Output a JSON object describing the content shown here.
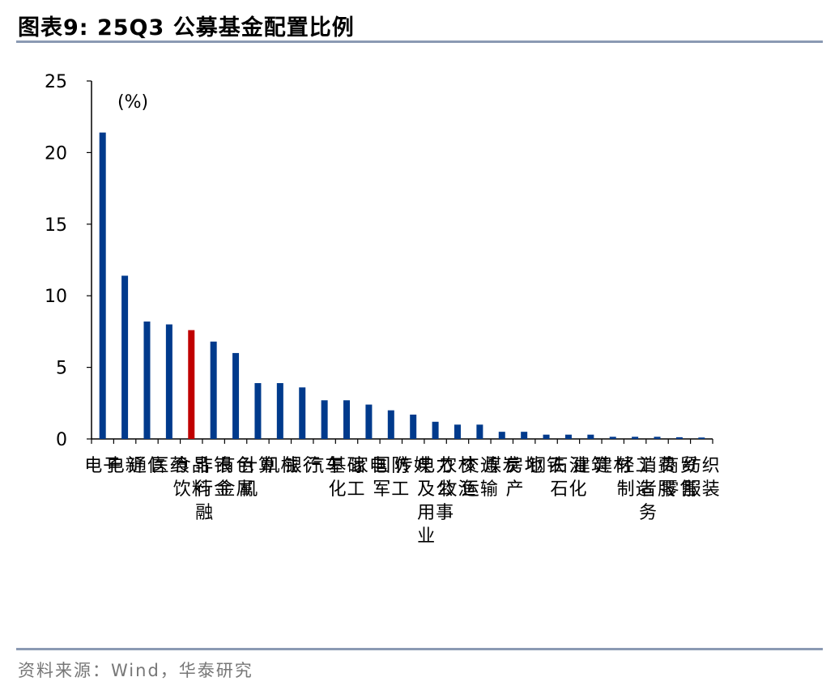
{
  "header": {
    "title": "图表9:  25Q3 公募基金配置比例"
  },
  "footer": {
    "source": "资料来源：Wind，华泰研究"
  },
  "chart_data": {
    "type": "bar",
    "unit_label": "(%)",
    "ylim": [
      0,
      25
    ],
    "yticks": [
      0,
      5,
      10,
      15,
      20,
      25
    ],
    "grid": false,
    "highlight_color": "#c00000",
    "bar_color": "#003a8c",
    "highlight_index": 4,
    "categories": [
      "电子",
      "电新",
      "通信",
      "医药",
      "食品饮料",
      "非银行金融",
      "有色金属",
      "计算机",
      "机械",
      "银行",
      "汽车",
      "基础化工",
      "家电",
      "国防军工",
      "传媒",
      "电力及公用事业",
      "农林牧渔",
      "交通运输",
      "煤炭",
      "房地产",
      "钢铁",
      "石油石化",
      "建筑",
      "建材",
      "轻工制造",
      "消费者服务",
      "商贸零售",
      "纺织服装"
    ],
    "values": [
      21.4,
      11.4,
      8.2,
      8.0,
      7.6,
      6.8,
      6.0,
      3.9,
      3.9,
      3.6,
      2.7,
      2.7,
      2.4,
      2.0,
      1.7,
      1.2,
      1.0,
      1.0,
      0.5,
      0.5,
      0.3,
      0.3,
      0.3,
      0.15,
      0.15,
      0.15,
      0.12,
      0.1
    ]
  }
}
